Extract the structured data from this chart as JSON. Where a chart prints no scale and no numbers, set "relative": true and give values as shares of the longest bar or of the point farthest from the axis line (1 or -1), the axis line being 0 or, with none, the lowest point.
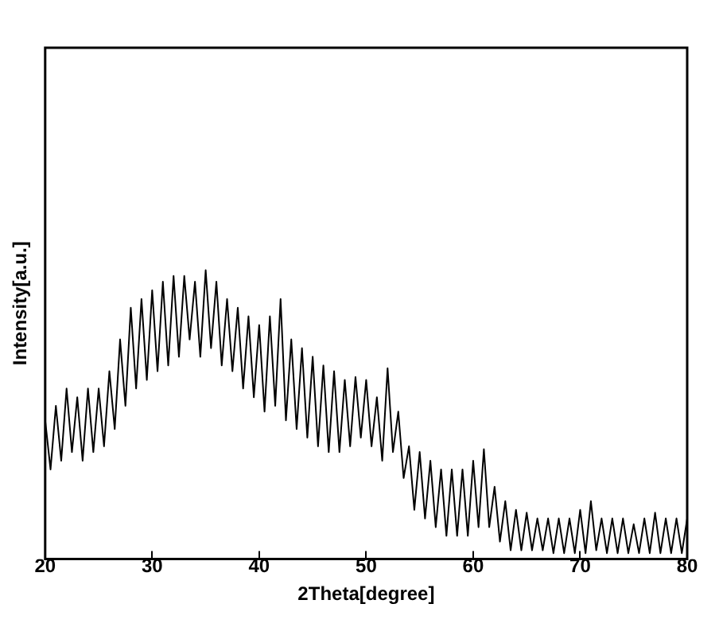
{
  "chart_data": {
    "type": "line",
    "xlabel": "2Theta[degree]",
    "ylabel": "Intensity[a.u.]",
    "relative": true,
    "xlim": [
      20,
      80
    ],
    "xticks": [
      20,
      30,
      40,
      50,
      60,
      70,
      80
    ],
    "grid": false,
    "legend": false,
    "marker": "none",
    "line_style": "solid",
    "x": [
      20,
      20.5,
      21,
      21.5,
      22,
      22.5,
      23,
      23.5,
      24,
      24.5,
      25,
      25.5,
      26,
      26.5,
      27,
      27.5,
      28,
      28.5,
      29,
      29.5,
      30,
      30.5,
      31,
      31.5,
      32,
      32.5,
      33,
      33.5,
      34,
      34.5,
      35,
      35.5,
      36,
      36.5,
      37,
      37.5,
      38,
      38.5,
      39,
      39.5,
      40,
      40.5,
      41,
      41.5,
      42,
      42.5,
      43,
      43.5,
      44,
      44.5,
      45,
      45.5,
      46,
      46.5,
      47,
      47.5,
      48,
      48.5,
      49,
      49.5,
      50,
      50.5,
      51,
      51.5,
      52,
      52.5,
      53,
      53.5,
      54,
      54.5,
      55,
      55.5,
      56,
      56.5,
      57,
      57.5,
      58,
      58.5,
      59,
      59.5,
      60,
      60.5,
      61,
      61.5,
      62,
      62.5,
      63,
      63.5,
      64,
      64.5,
      65,
      65.5,
      66,
      66.5,
      67,
      67.5,
      68,
      68.5,
      69,
      69.5,
      70,
      70.5,
      71,
      71.5,
      72,
      72.5,
      73,
      73.5,
      74,
      74.5,
      75,
      75.5,
      76,
      76.5,
      77,
      77.5,
      78,
      78.5,
      79,
      79.5,
      80
    ],
    "series": [
      {
        "color": "#000000",
        "values": [
          0.48,
          0.31,
          0.53,
          0.34,
          0.59,
          0.37,
          0.56,
          0.34,
          0.59,
          0.37,
          0.59,
          0.39,
          0.65,
          0.45,
          0.76,
          0.53,
          0.87,
          0.59,
          0.9,
          0.62,
          0.93,
          0.65,
          0.96,
          0.67,
          0.98,
          0.7,
          0.98,
          0.76,
          0.96,
          0.7,
          1,
          0.73,
          0.96,
          0.67,
          0.9,
          0.65,
          0.87,
          0.59,
          0.84,
          0.56,
          0.81,
          0.51,
          0.84,
          0.53,
          0.9,
          0.48,
          0.76,
          0.45,
          0.73,
          0.42,
          0.7,
          0.39,
          0.67,
          0.37,
          0.65,
          0.37,
          0.62,
          0.39,
          0.63,
          0.42,
          0.62,
          0.39,
          0.56,
          0.34,
          0.66,
          0.37,
          0.51,
          0.28,
          0.39,
          0.17,
          0.37,
          0.14,
          0.34,
          0.11,
          0.31,
          0.08,
          0.31,
          0.08,
          0.31,
          0.08,
          0.34,
          0.11,
          0.38,
          0.11,
          0.25,
          0.06,
          0.2,
          0.03,
          0.17,
          0.03,
          0.16,
          0.03,
          0.14,
          0.03,
          0.14,
          0.02,
          0.14,
          0.02,
          0.14,
          0.02,
          0.17,
          0.02,
          0.2,
          0.03,
          0.14,
          0.02,
          0.14,
          0.02,
          0.14,
          0.02,
          0.12,
          0.02,
          0.14,
          0.02,
          0.16,
          0.02,
          0.14,
          0.02,
          0.14,
          0.02,
          0.14
        ]
      }
    ]
  }
}
